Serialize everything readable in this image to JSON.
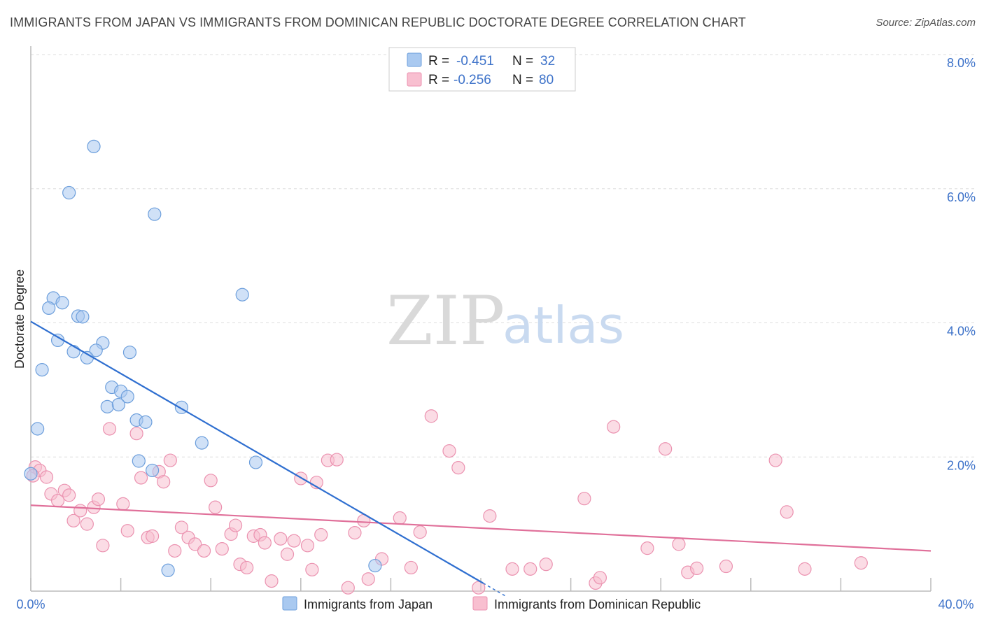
{
  "title": "IMMIGRANTS FROM JAPAN VS IMMIGRANTS FROM DOMINICAN REPUBLIC DOCTORATE DEGREE CORRELATION CHART",
  "source": "Source: ZipAtlas.com",
  "watermark": {
    "zip": "ZIP",
    "atlas": "atlas"
  },
  "legend": {
    "rows": [
      {
        "r_label": "R =",
        "r_value": "-0.451",
        "n_label": "N =",
        "n_value": "32"
      },
      {
        "r_label": "R =",
        "r_value": "-0.256",
        "n_label": "N =",
        "n_value": "80"
      }
    ]
  },
  "colors": {
    "japan_fill": "#a9c9f0",
    "japan_stroke": "#6d9fdc",
    "japan_line": "#2f6fd0",
    "dr_fill": "#f8bfd0",
    "dr_stroke": "#eb92b0",
    "dr_line": "#e0709a",
    "grid": "#dddddd",
    "axis": "#bbbbbb",
    "tick_text": "#3d72c9"
  },
  "chart_data": {
    "type": "scatter",
    "title": "IMMIGRANTS FROM JAPAN VS IMMIGRANTS FROM DOMINICAN REPUBLIC DOCTORATE DEGREE CORRELATION CHART",
    "xlabel": "",
    "ylabel": "Doctorate Degree",
    "xlim": [
      0,
      40
    ],
    "ylim": [
      0,
      8
    ],
    "x_tick_labels": [
      "0.0%",
      "40.0%"
    ],
    "y_ticks": [
      2,
      4,
      6,
      8
    ],
    "y_tick_labels": [
      "2.0%",
      "4.0%",
      "6.0%",
      "8.0%"
    ],
    "grid": true,
    "legend_position": "top-center",
    "series": [
      {
        "name": "Immigrants from Japan",
        "r": -0.451,
        "n": 32,
        "trendline": {
          "x": [
            0,
            20.1
          ],
          "y": [
            4.02,
            0.12
          ]
        },
        "points": [
          {
            "x": 2.8,
            "y": 6.63
          },
          {
            "x": 1.7,
            "y": 5.94
          },
          {
            "x": 5.5,
            "y": 5.62
          },
          {
            "x": 9.4,
            "y": 4.42
          },
          {
            "x": 1.0,
            "y": 4.37
          },
          {
            "x": 1.4,
            "y": 4.3
          },
          {
            "x": 0.8,
            "y": 4.22
          },
          {
            "x": 2.1,
            "y": 4.1
          },
          {
            "x": 2.3,
            "y": 4.09
          },
          {
            "x": 1.2,
            "y": 3.74
          },
          {
            "x": 3.2,
            "y": 3.7
          },
          {
            "x": 1.9,
            "y": 3.57
          },
          {
            "x": 2.9,
            "y": 3.59
          },
          {
            "x": 4.4,
            "y": 3.56
          },
          {
            "x": 2.5,
            "y": 3.48
          },
          {
            "x": 0.5,
            "y": 3.3
          },
          {
            "x": 3.6,
            "y": 3.04
          },
          {
            "x": 4.0,
            "y": 2.98
          },
          {
            "x": 4.3,
            "y": 2.9
          },
          {
            "x": 3.4,
            "y": 2.75
          },
          {
            "x": 3.9,
            "y": 2.78
          },
          {
            "x": 6.7,
            "y": 2.74
          },
          {
            "x": 4.7,
            "y": 2.55
          },
          {
            "x": 5.1,
            "y": 2.52
          },
          {
            "x": 0.3,
            "y": 2.42
          },
          {
            "x": 7.6,
            "y": 2.21
          },
          {
            "x": 4.8,
            "y": 1.94
          },
          {
            "x": 10.0,
            "y": 1.92
          },
          {
            "x": 5.4,
            "y": 1.8
          },
          {
            "x": 0.0,
            "y": 1.75
          },
          {
            "x": 15.3,
            "y": 0.38
          },
          {
            "x": 6.1,
            "y": 0.31
          }
        ]
      },
      {
        "name": "Immigrants from Dominican Republic",
        "r": -0.256,
        "n": 80,
        "trendline": {
          "x": [
            0,
            40
          ],
          "y": [
            1.28,
            0.6
          ]
        },
        "points": [
          {
            "x": 0.2,
            "y": 1.85
          },
          {
            "x": 0.4,
            "y": 1.8
          },
          {
            "x": 0.7,
            "y": 1.7
          },
          {
            "x": 0.9,
            "y": 1.45
          },
          {
            "x": 1.2,
            "y": 1.35
          },
          {
            "x": 1.5,
            "y": 1.5
          },
          {
            "x": 1.7,
            "y": 1.43
          },
          {
            "x": 1.9,
            "y": 1.05
          },
          {
            "x": 2.2,
            "y": 1.2
          },
          {
            "x": 2.5,
            "y": 1.0
          },
          {
            "x": 2.8,
            "y": 1.25
          },
          {
            "x": 3.0,
            "y": 1.37
          },
          {
            "x": 3.2,
            "y": 0.68
          },
          {
            "x": 3.5,
            "y": 2.42
          },
          {
            "x": 4.1,
            "y": 1.3
          },
          {
            "x": 4.3,
            "y": 0.9
          },
          {
            "x": 4.7,
            "y": 2.35
          },
          {
            "x": 4.9,
            "y": 1.69
          },
          {
            "x": 5.2,
            "y": 0.8
          },
          {
            "x": 5.4,
            "y": 0.82
          },
          {
            "x": 5.7,
            "y": 1.78
          },
          {
            "x": 5.9,
            "y": 1.63
          },
          {
            "x": 6.2,
            "y": 1.95
          },
          {
            "x": 6.4,
            "y": 0.6
          },
          {
            "x": 6.7,
            "y": 0.95
          },
          {
            "x": 7.0,
            "y": 0.8
          },
          {
            "x": 7.3,
            "y": 0.7
          },
          {
            "x": 7.7,
            "y": 0.6
          },
          {
            "x": 8.0,
            "y": 1.65
          },
          {
            "x": 8.2,
            "y": 1.25
          },
          {
            "x": 8.5,
            "y": 0.63
          },
          {
            "x": 8.9,
            "y": 0.85
          },
          {
            "x": 9.1,
            "y": 0.98
          },
          {
            "x": 9.3,
            "y": 0.4
          },
          {
            "x": 9.6,
            "y": 0.35
          },
          {
            "x": 9.9,
            "y": 0.82
          },
          {
            "x": 10.2,
            "y": 0.84
          },
          {
            "x": 10.4,
            "y": 0.72
          },
          {
            "x": 10.7,
            "y": 0.15
          },
          {
            "x": 11.1,
            "y": 0.78
          },
          {
            "x": 11.4,
            "y": 0.55
          },
          {
            "x": 11.7,
            "y": 0.75
          },
          {
            "x": 12.0,
            "y": 1.68
          },
          {
            "x": 12.3,
            "y": 0.68
          },
          {
            "x": 12.5,
            "y": 0.32
          },
          {
            "x": 12.7,
            "y": 1.62
          },
          {
            "x": 12.9,
            "y": 0.84
          },
          {
            "x": 13.2,
            "y": 1.95
          },
          {
            "x": 13.6,
            "y": 1.96
          },
          {
            "x": 14.1,
            "y": 0.05
          },
          {
            "x": 14.4,
            "y": 0.87
          },
          {
            "x": 14.8,
            "y": 1.05
          },
          {
            "x": 15.0,
            "y": 0.18
          },
          {
            "x": 15.6,
            "y": 0.48
          },
          {
            "x": 16.4,
            "y": 1.09
          },
          {
            "x": 16.9,
            "y": 0.35
          },
          {
            "x": 17.3,
            "y": 0.88
          },
          {
            "x": 17.8,
            "y": 2.61
          },
          {
            "x": 18.6,
            "y": 2.09
          },
          {
            "x": 19.0,
            "y": 1.84
          },
          {
            "x": 19.9,
            "y": 0.05
          },
          {
            "x": 20.4,
            "y": 1.12
          },
          {
            "x": 21.4,
            "y": 0.33
          },
          {
            "x": 22.2,
            "y": 0.33
          },
          {
            "x": 22.9,
            "y": 0.4
          },
          {
            "x": 24.6,
            "y": 1.38
          },
          {
            "x": 25.1,
            "y": 0.12
          },
          {
            "x": 25.3,
            "y": 0.2
          },
          {
            "x": 25.9,
            "y": 2.45
          },
          {
            "x": 27.4,
            "y": 0.64
          },
          {
            "x": 28.2,
            "y": 2.12
          },
          {
            "x": 28.8,
            "y": 0.7
          },
          {
            "x": 29.2,
            "y": 0.28
          },
          {
            "x": 29.6,
            "y": 0.34
          },
          {
            "x": 30.9,
            "y": 0.37
          },
          {
            "x": 33.1,
            "y": 1.95
          },
          {
            "x": 33.6,
            "y": 1.18
          },
          {
            "x": 34.4,
            "y": 0.33
          },
          {
            "x": 36.9,
            "y": 0.42
          },
          {
            "x": 0.1,
            "y": 1.72
          }
        ]
      }
    ]
  }
}
